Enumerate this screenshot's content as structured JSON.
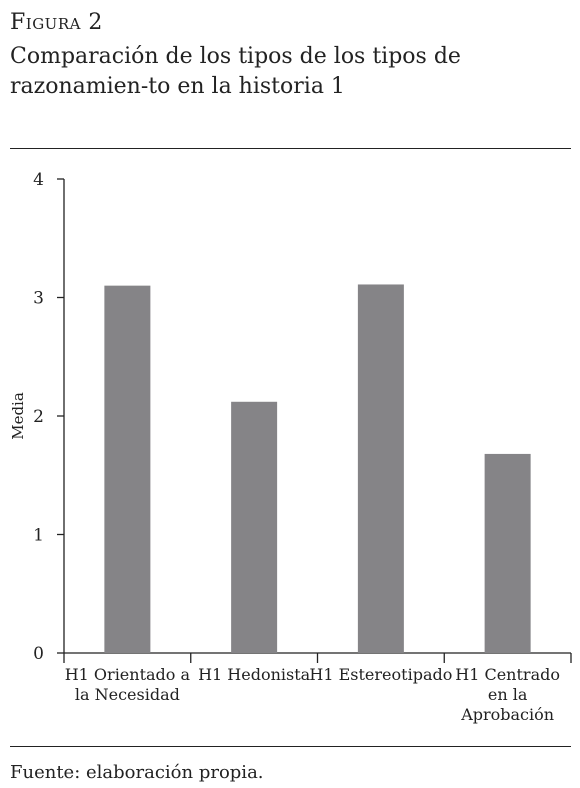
{
  "figure": {
    "label": "Figura 2",
    "title": "Comparación de los tipos de los tipos de razonamien-to en la historia 1"
  },
  "source": "Fuente: elaboración propia.",
  "colors": {
    "bar": "#858487",
    "axis": "#222222"
  },
  "chart_data": {
    "type": "bar",
    "categories": [
      [
        "H1 Orientado a",
        "la Necesidad"
      ],
      [
        "H1 Hedonista"
      ],
      [
        "H1 Estereotipado"
      ],
      [
        "H1 Centrado",
        "en la",
        "Aprobación"
      ]
    ],
    "values": [
      3.1,
      2.12,
      3.11,
      1.68
    ],
    "ylabel": "Media",
    "xlabel": "",
    "ylim": [
      0,
      4
    ],
    "yticks": [
      0,
      1,
      2,
      3,
      4
    ],
    "grid": false,
    "legend": "none"
  }
}
